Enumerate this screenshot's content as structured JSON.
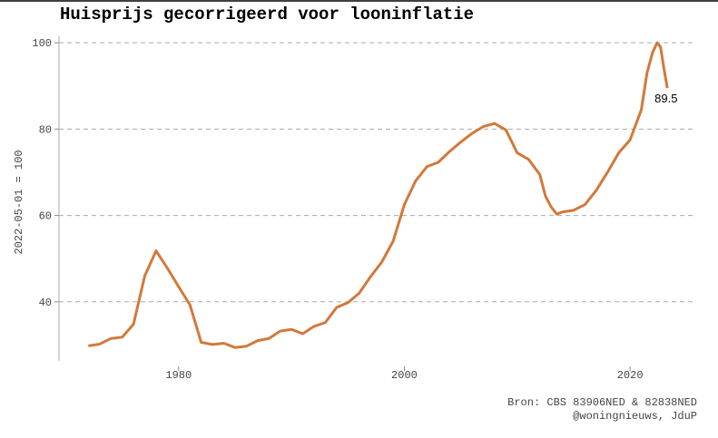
{
  "chart_data": {
    "type": "line",
    "title": "Huisprijs gecorrigeerd voor looninflatie",
    "y_label": "2022-05-01 = 100",
    "source": [
      "Bron: CBS 83906NED & 82838NED",
      "@woningnieuws, JduP"
    ],
    "end_label": "89.5",
    "x": [
      1972,
      1973,
      1974,
      1975,
      1976,
      1977,
      1978,
      1979,
      1980,
      1981,
      1982,
      1983,
      1984,
      1985,
      1986,
      1987,
      1988,
      1989,
      1990,
      1991,
      1992,
      1993,
      1994,
      1995,
      1996,
      1997,
      1998,
      1999,
      2000,
      2001,
      2002,
      2003,
      2004,
      2005,
      2006,
      2007,
      2008,
      2009,
      2010,
      2011,
      2012,
      2012.5,
      2013,
      2013.5,
      2014,
      2015,
      2016,
      2017,
      2018,
      2019,
      2020,
      2021,
      2021.5,
      2022,
      2022.4,
      2022.7,
      2023,
      2023.3
    ],
    "series": [
      {
        "name": "Huisprijs",
        "color": "#d2793a",
        "values": [
          29.8,
          30.2,
          31.5,
          31.8,
          34.8,
          46,
          51.8,
          47.8,
          43.5,
          39.3,
          30.6,
          30.1,
          30.4,
          29.4,
          29.7,
          31.0,
          31.5,
          33.2,
          33.6,
          32.6,
          34.3,
          35.2,
          38.7,
          39.8,
          42,
          45.8,
          49.2,
          54,
          62.5,
          68,
          71.3,
          72.3,
          74.8,
          77,
          79,
          80.6,
          81.3,
          79.8,
          74.5,
          73,
          69.5,
          64.5,
          62,
          60.3,
          60.8,
          61.2,
          62.5,
          65.8,
          70,
          74.5,
          77.5,
          84.5,
          93,
          97.8,
          100,
          99,
          94,
          89.5
        ]
      }
    ],
    "xlim": [
      1969.4,
      2025.7
    ],
    "ylim": [
      26.3,
      101.5
    ],
    "xticks": [
      1980,
      2000,
      2020
    ],
    "yticks": [
      40,
      60,
      80,
      100
    ],
    "grid": true
  }
}
